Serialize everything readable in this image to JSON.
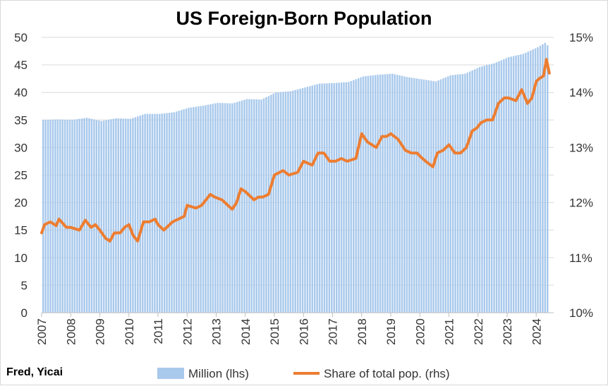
{
  "source_note": "Fred, Yicai",
  "colors": {
    "bars": "#a9c9ec",
    "line": "#ed7d31",
    "grid": "#d9d9d9",
    "text": "#333333"
  },
  "chart_data": {
    "type": "bar",
    "title": "US Foreign-Born Population",
    "x_ticks": [
      "2007",
      "2008",
      "2009",
      "2010",
      "2011",
      "2012",
      "2013",
      "2014",
      "2015",
      "2016",
      "2017",
      "2018",
      "2019",
      "2020",
      "2021",
      "2022",
      "2023",
      "2024"
    ],
    "left_axis": {
      "min": 0,
      "max": 50,
      "step": 5,
      "labels": [
        "0",
        "5",
        "10",
        "15",
        "20",
        "25",
        "30",
        "35",
        "40",
        "45",
        "50"
      ]
    },
    "right_axis": {
      "min": 10,
      "max": 15,
      "step": 1,
      "labels": [
        "10%",
        "11%",
        "12%",
        "13%",
        "14%",
        "15%"
      ]
    },
    "legend": {
      "position": "bottom"
    },
    "series": [
      {
        "name": "Million (lhs)",
        "kind": "bar",
        "axis": "left",
        "x": [
          2007.0,
          2007.5,
          2008.0,
          2008.5,
          2009.0,
          2009.5,
          2010.0,
          2010.5,
          2011.0,
          2011.5,
          2012.0,
          2012.5,
          2013.0,
          2013.5,
          2014.0,
          2014.5,
          2015.0,
          2015.5,
          2016.0,
          2016.5,
          2017.0,
          2017.5,
          2018.0,
          2018.5,
          2019.0,
          2019.5,
          2020.0,
          2020.5,
          2021.0,
          2021.5,
          2022.0,
          2022.5,
          2023.0,
          2023.5,
          2024.0,
          2024.25,
          2024.4
        ],
        "values": [
          35.0,
          35.1,
          35.0,
          35.4,
          34.8,
          35.3,
          35.2,
          36.1,
          36.1,
          36.4,
          37.2,
          37.6,
          38.1,
          38.0,
          38.8,
          38.7,
          40.0,
          40.2,
          40.9,
          41.6,
          41.7,
          41.9,
          42.9,
          43.2,
          43.4,
          42.8,
          42.4,
          42.0,
          43.1,
          43.4,
          44.6,
          45.3,
          46.4,
          47.0,
          48.2,
          49.0,
          48.2
        ]
      },
      {
        "name": "Share of total pop. (rhs)",
        "kind": "line",
        "axis": "right",
        "x": [
          2007.0,
          2007.1,
          2007.3,
          2007.5,
          2007.6,
          2007.85,
          2008.0,
          2008.3,
          2008.5,
          2008.7,
          2008.85,
          2009.0,
          2009.2,
          2009.35,
          2009.5,
          2009.7,
          2009.85,
          2010.0,
          2010.15,
          2010.3,
          2010.5,
          2010.7,
          2010.9,
          2011.0,
          2011.2,
          2011.5,
          2011.7,
          2011.9,
          2012.0,
          2012.3,
          2012.5,
          2012.8,
          2012.95,
          2013.2,
          2013.4,
          2013.55,
          2013.7,
          2013.85,
          2014.0,
          2014.3,
          2014.45,
          2014.6,
          2014.8,
          2015.0,
          2015.3,
          2015.5,
          2015.8,
          2016.0,
          2016.3,
          2016.5,
          2016.7,
          2016.9,
          2017.1,
          2017.3,
          2017.5,
          2017.8,
          2018.0,
          2018.2,
          2018.5,
          2018.7,
          2018.85,
          2019.0,
          2019.25,
          2019.5,
          2019.7,
          2019.9,
          2020.05,
          2020.2,
          2020.45,
          2020.6,
          2020.8,
          2021.0,
          2021.2,
          2021.4,
          2021.6,
          2021.8,
          2021.95,
          2022.1,
          2022.3,
          2022.5,
          2022.7,
          2022.9,
          2023.05,
          2023.3,
          2023.5,
          2023.7,
          2023.85,
          2024.0,
          2024.1,
          2024.25,
          2024.35,
          2024.45
        ],
        "values": [
          11.45,
          11.6,
          11.65,
          11.58,
          11.7,
          11.55,
          11.55,
          11.5,
          11.68,
          11.55,
          11.6,
          11.5,
          11.35,
          11.3,
          11.45,
          11.45,
          11.55,
          11.6,
          11.4,
          11.3,
          11.65,
          11.65,
          11.7,
          11.6,
          11.5,
          11.65,
          11.7,
          11.75,
          11.95,
          11.9,
          11.95,
          12.15,
          12.1,
          12.05,
          11.95,
          11.88,
          12.0,
          12.25,
          12.2,
          12.05,
          12.1,
          12.1,
          12.15,
          12.5,
          12.58,
          12.5,
          12.55,
          12.75,
          12.68,
          12.9,
          12.9,
          12.75,
          12.75,
          12.8,
          12.75,
          12.8,
          13.25,
          13.1,
          13.0,
          13.2,
          13.2,
          13.25,
          13.15,
          12.95,
          12.9,
          12.9,
          12.82,
          12.75,
          12.65,
          12.9,
          12.95,
          13.05,
          12.9,
          12.9,
          13.0,
          13.3,
          13.35,
          13.45,
          13.5,
          13.5,
          13.8,
          13.9,
          13.9,
          13.85,
          14.05,
          13.8,
          13.9,
          14.2,
          14.25,
          14.3,
          14.6,
          14.35
        ]
      }
    ]
  }
}
